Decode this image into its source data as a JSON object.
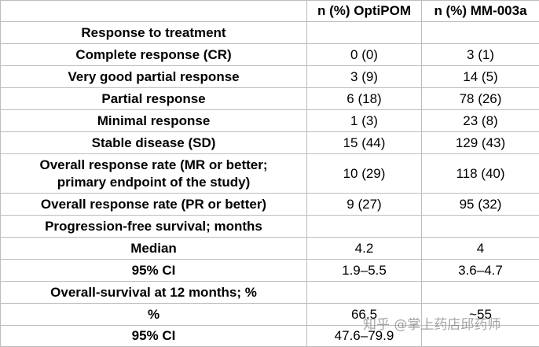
{
  "header": {
    "col_label": "",
    "col_optipom": "n (%) OptiPOM",
    "col_mm003a": "n (%) MM-003a"
  },
  "rows": [
    {
      "label": "Response to treatment",
      "optipom": "",
      "mm003a": ""
    },
    {
      "label": "Complete response (CR)",
      "optipom": "0 (0)",
      "mm003a": "3 (1)"
    },
    {
      "label": "Very good partial response",
      "optipom": "3 (9)",
      "mm003a": "14 (5)"
    },
    {
      "label": "Partial response",
      "optipom": "6 (18)",
      "mm003a": "78 (26)"
    },
    {
      "label": "Minimal response",
      "optipom": "1 (3)",
      "mm003a": "23 (8)"
    },
    {
      "label": "Stable disease (SD)",
      "optipom": "15 (44)",
      "mm003a": "129 (43)"
    },
    {
      "label_line1": "Overall response rate (MR or better;",
      "label_line2": "primary endpoint of the study)",
      "optipom": "10 (29)",
      "mm003a": "118 (40)"
    },
    {
      "label": "Overall response rate (PR or better)",
      "optipom": "9 (27)",
      "mm003a": "95 (32)"
    },
    {
      "label": "Progression-free survival; months",
      "optipom": "",
      "mm003a": ""
    },
    {
      "label": "Median",
      "optipom": "4.2",
      "mm003a": "4"
    },
    {
      "label": "95% CI",
      "optipom": "1.9–5.5",
      "mm003a": "3.6–4.7"
    },
    {
      "label": "Overall-survival at 12 months; %",
      "optipom": "",
      "mm003a": ""
    },
    {
      "label": "%",
      "optipom": "66.5",
      "mm003a": "~55"
    },
    {
      "label": "95% CI",
      "optipom": "47.6–79.9",
      "mm003a": ""
    }
  ],
  "watermark": "知乎 @掌上药店邱药师"
}
